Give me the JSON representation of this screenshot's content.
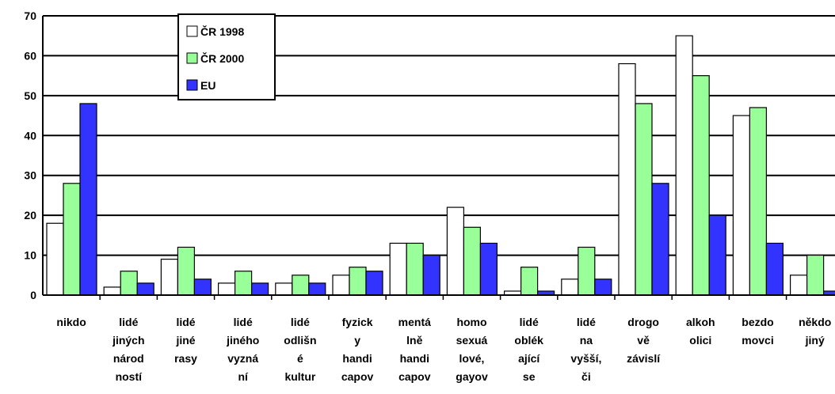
{
  "chart_data": {
    "type": "bar",
    "categories": [
      "nikdo",
      "lidé jiných národ ností",
      "lidé jiné rasy",
      "lidé jiného vyzná ní",
      "lidé odlišn é kultur",
      "fyzick y handi capov",
      "mentá lně handi capov",
      "homo sexuá lové, gayov",
      "lidé oblék ající se",
      "lidé na vyšší, či",
      "drogo vě závislí",
      "alkoh olici",
      "bezdo movci",
      "někdo jiný"
    ],
    "series": [
      {
        "name": "ČR 1998",
        "color": "#ffffff",
        "values": [
          18,
          2,
          9,
          3,
          3,
          5,
          13,
          22,
          1,
          4,
          58,
          65,
          45,
          5
        ]
      },
      {
        "name": "ČR 2000",
        "color": "#99ff99",
        "values": [
          28,
          6,
          12,
          6,
          5,
          7,
          13,
          17,
          7,
          12,
          48,
          55,
          47,
          10
        ]
      },
      {
        "name": "EU",
        "color": "#3333ff",
        "values": [
          48,
          3,
          4,
          3,
          3,
          6,
          10,
          13,
          1,
          4,
          28,
          20,
          13,
          1
        ]
      }
    ],
    "ylim": [
      0,
      70
    ],
    "yticks": [
      0,
      10,
      20,
      30,
      40,
      50,
      60,
      70
    ],
    "grid": true,
    "legend": "top-left"
  }
}
